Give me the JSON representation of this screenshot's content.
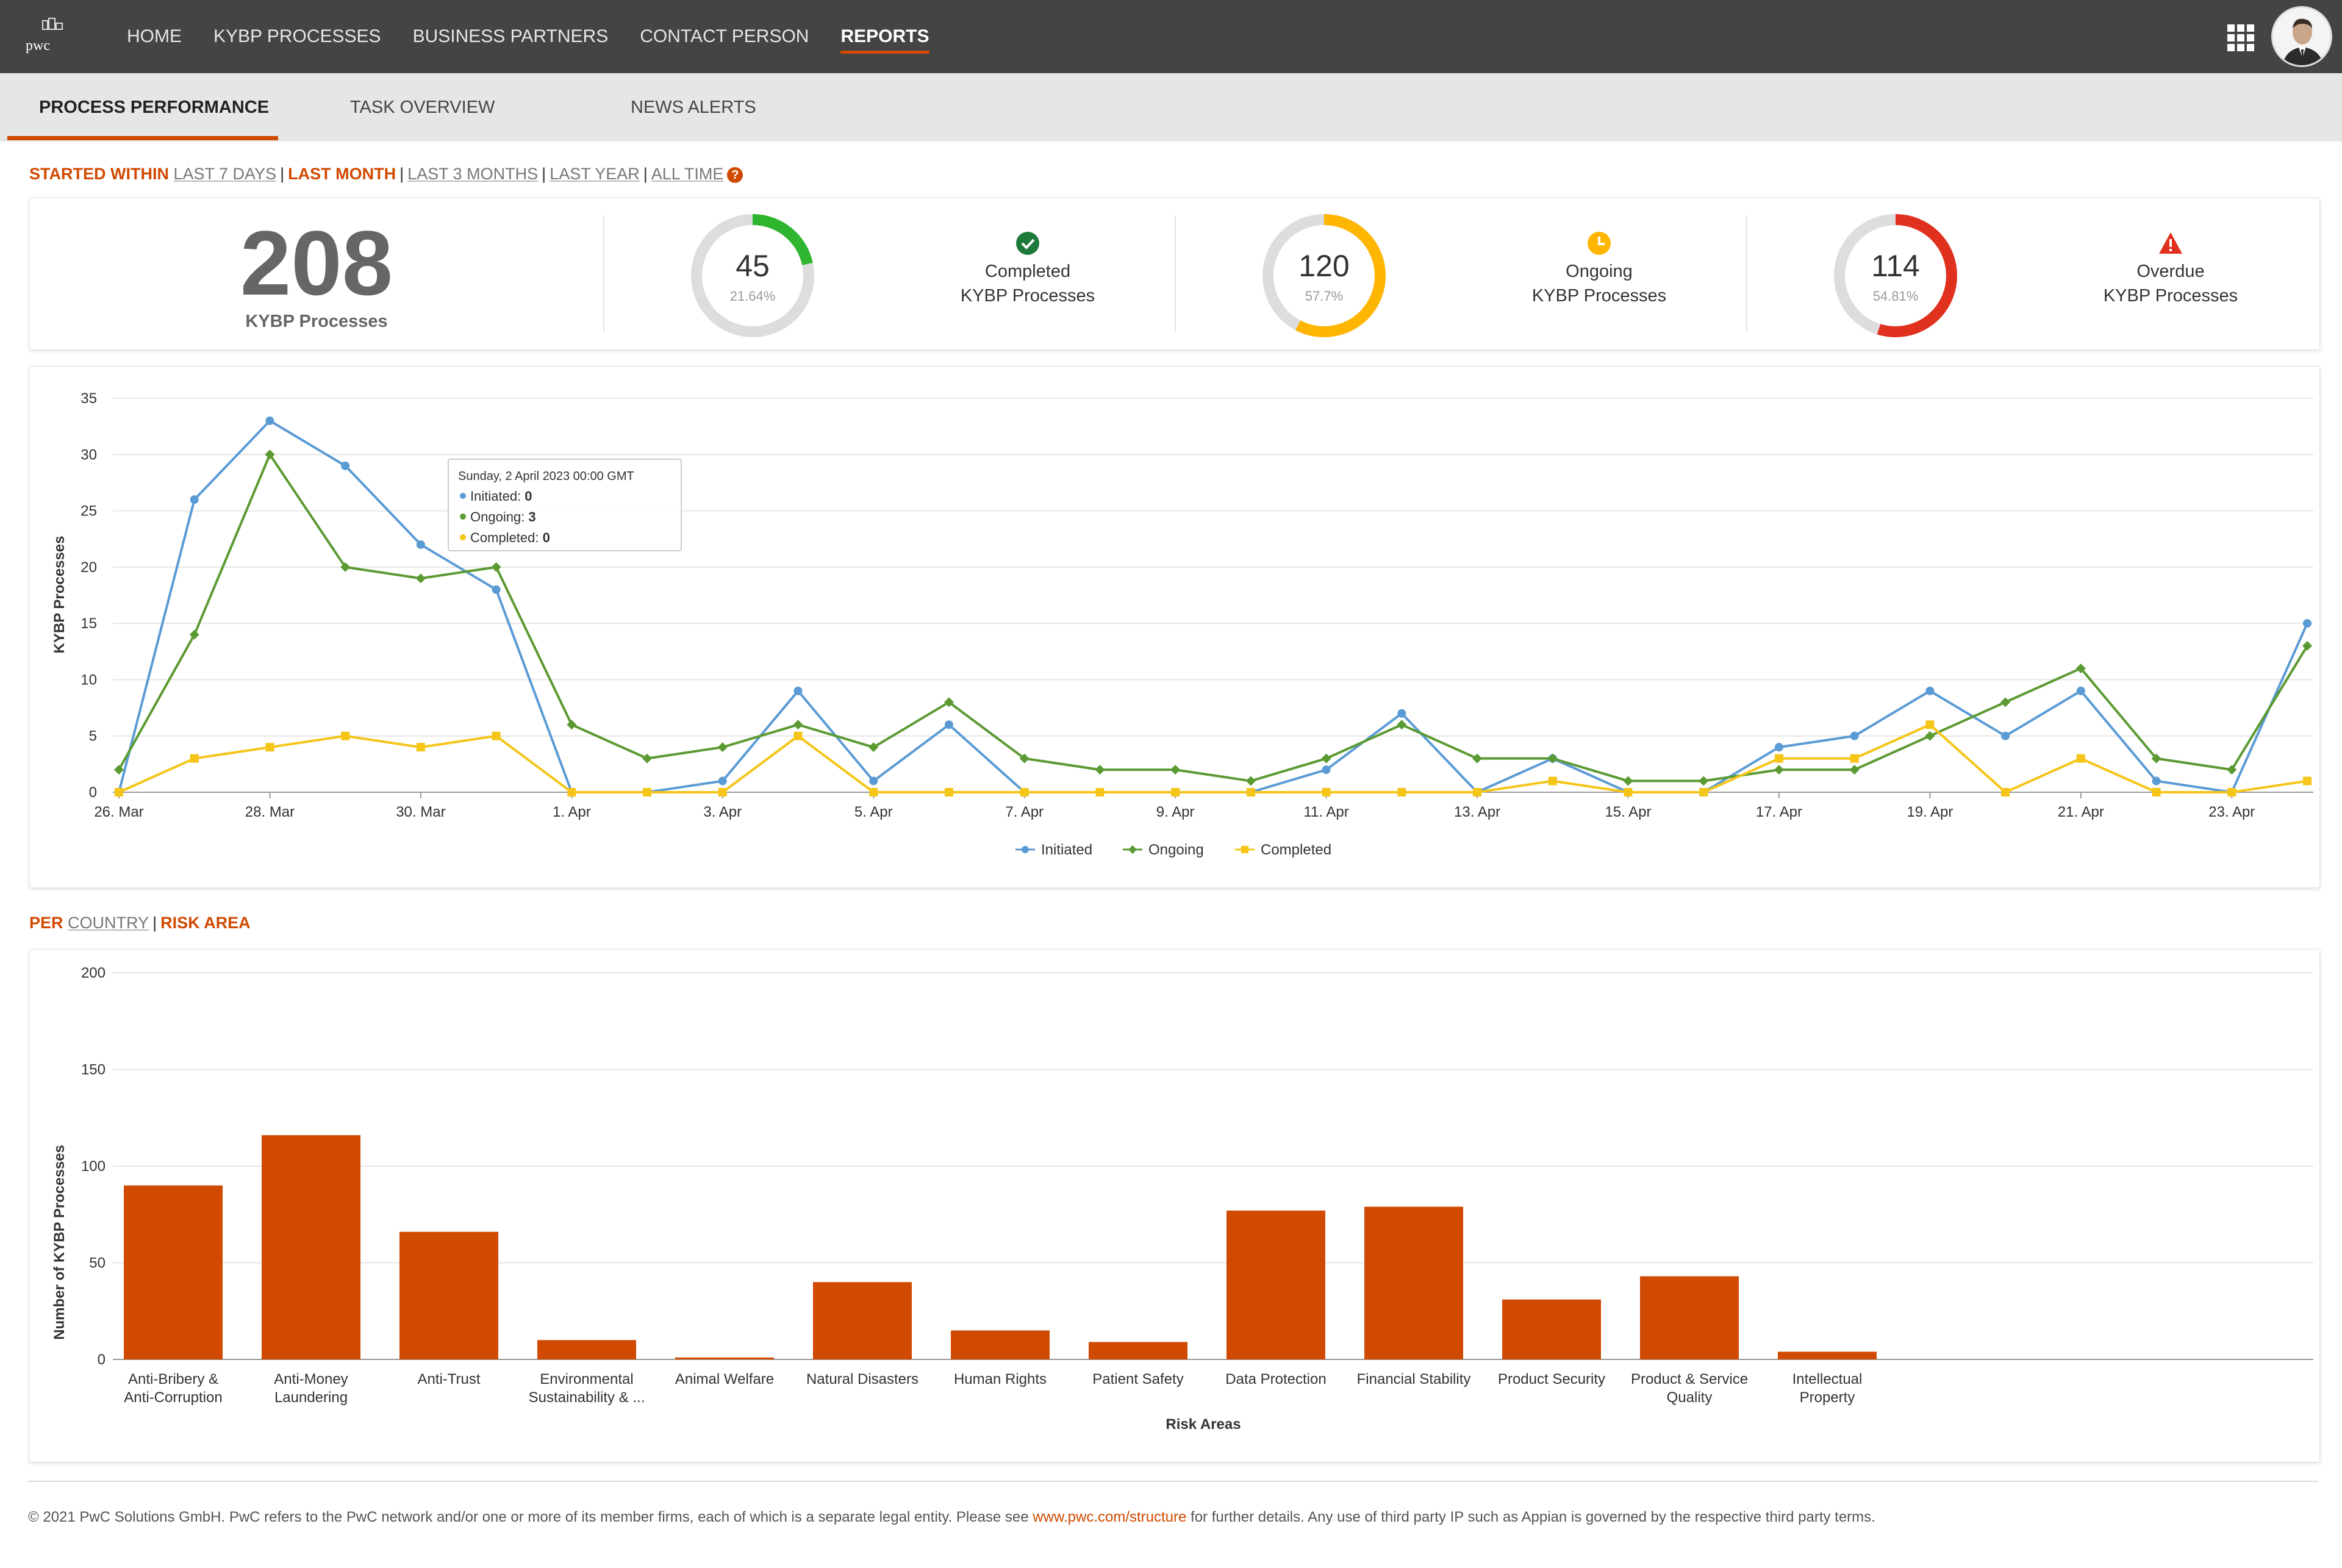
{
  "nav": {
    "logo_text": "pwc",
    "items": [
      {
        "label": "HOME"
      },
      {
        "label": "KYBP PROCESSES"
      },
      {
        "label": "BUSINESS PARTNERS"
      },
      {
        "label": "CONTACT PERSON"
      },
      {
        "label": "REPORTS",
        "active": true
      }
    ]
  },
  "tabs": [
    {
      "label": "PROCESS PERFORMANCE",
      "active": true
    },
    {
      "label": "TASK OVERVIEW"
    },
    {
      "label": "NEWS ALERTS"
    }
  ],
  "time_filter": {
    "label": "STARTED WITHIN",
    "options": [
      "LAST 7 DAYS",
      "LAST MONTH",
      "LAST 3 MONTHS",
      "LAST YEAR",
      "ALL TIME"
    ],
    "selected": "LAST MONTH"
  },
  "summary": {
    "total": "208",
    "total_label": "KYBP Processes",
    "stats": [
      {
        "value": "45",
        "percent": "21.64%",
        "fraction": 0.2164,
        "label1": "Completed",
        "label2": "KYBP Processes",
        "color": "#2fb52f",
        "icon": "check-circle-icon"
      },
      {
        "value": "120",
        "percent": "57.7%",
        "fraction": 0.577,
        "label1": "Ongoing",
        "label2": "KYBP Processes",
        "color": "#ffb600",
        "icon": "clock-icon"
      },
      {
        "value": "114",
        "percent": "54.81%",
        "fraction": 0.5481,
        "label1": "Overdue",
        "label2": "KYBP Processes",
        "color": "#e0301e",
        "icon": "warning-icon"
      }
    ]
  },
  "group_filter": {
    "label": "PER",
    "options": [
      "COUNTRY",
      "RISK AREA"
    ],
    "selected": "RISK AREA"
  },
  "chart_data": [
    {
      "type": "line",
      "ylabel": "KYBP Processes",
      "ylim": [
        0,
        35
      ],
      "yticks": [
        "0",
        "5",
        "10",
        "15",
        "20",
        "25",
        "30",
        "35"
      ],
      "x": [
        "26. Mar",
        "27. Mar",
        "28. Mar",
        "29. Mar",
        "30. Mar",
        "31. Mar",
        "1. Apr",
        "2. Apr",
        "3. Apr",
        "4. Apr",
        "5. Apr",
        "6. Apr",
        "7. Apr",
        "8. Apr",
        "9. Apr",
        "10. Apr",
        "11. Apr",
        "12. Apr",
        "13. Apr",
        "14. Apr",
        "15. Apr",
        "16. Apr",
        "17. Apr",
        "18. Apr",
        "19. Apr",
        "20. Apr",
        "21. Apr",
        "22. Apr",
        "23. Apr",
        "24. Apr"
      ],
      "xtick_labels": [
        "26. Mar",
        "28. Mar",
        "30. Mar",
        "1. Apr",
        "3. Apr",
        "5. Apr",
        "7. Apr",
        "9. Apr",
        "11. Apr",
        "13. Apr",
        "15. Apr",
        "17. Apr",
        "19. Apr",
        "21. Apr",
        "23. Apr"
      ],
      "series": [
        {
          "name": "Initiated",
          "color": "#5b9bd5",
          "marker": "circle",
          "values": [
            0,
            26,
            33,
            29,
            22,
            18,
            0,
            0,
            1,
            9,
            1,
            6,
            0,
            0,
            0,
            0,
            2,
            7,
            0,
            3,
            0,
            0,
            4,
            5,
            9,
            5,
            9,
            1,
            0,
            15
          ]
        },
        {
          "name": "Ongoing",
          "color": "#5b9a32",
          "marker": "diamond",
          "values": [
            2,
            14,
            30,
            20,
            19,
            20,
            6,
            3,
            4,
            6,
            4,
            8,
            3,
            2,
            2,
            1,
            3,
            6,
            3,
            3,
            1,
            1,
            2,
            2,
            5,
            8,
            11,
            3,
            2,
            13
          ]
        },
        {
          "name": "Completed",
          "color": "#f5c518",
          "marker": "square",
          "values": [
            0,
            3,
            4,
            5,
            4,
            5,
            0,
            0,
            0,
            5,
            0,
            0,
            0,
            0,
            0,
            0,
            0,
            0,
            0,
            1,
            0,
            0,
            3,
            3,
            6,
            0,
            3,
            0,
            0,
            1
          ]
        }
      ],
      "tooltip": {
        "title": "Sunday, 2 April 2023 00:00 GMT",
        "rows": [
          {
            "name": "Initiated",
            "value": "0"
          },
          {
            "name": "Ongoing",
            "value": "3"
          },
          {
            "name": "Completed",
            "value": "0"
          }
        ]
      }
    },
    {
      "type": "bar",
      "xlabel": "Risk Areas",
      "ylabel": "Number of KYBP Processes",
      "ylim": [
        0,
        200
      ],
      "yticks": [
        "0",
        "50",
        "100",
        "150",
        "200"
      ],
      "color": "#d04a02",
      "categories": [
        [
          "Anti-Bribery &",
          "Anti-Corruption"
        ],
        [
          "Anti-Money",
          "Laundering"
        ],
        [
          "Anti-Trust"
        ],
        [
          "Environmental",
          "Sustainability & ..."
        ],
        [
          "Animal Welfare"
        ],
        [
          "Natural Disasters"
        ],
        [
          "Human Rights"
        ],
        [
          "Patient Safety"
        ],
        [
          "Data Protection"
        ],
        [
          "Financial Stability"
        ],
        [
          "Product Security"
        ],
        [
          "Product & Service",
          "Quality"
        ],
        [
          "Intellectual",
          "Property"
        ]
      ],
      "values": [
        90,
        116,
        66,
        10,
        1,
        40,
        15,
        9,
        77,
        79,
        31,
        43,
        4
      ]
    }
  ],
  "footer": {
    "text_before": "© 2021 PwC Solutions GmbH. PwC refers to the PwC network and/or one or more of its member firms, each of which is a separate legal entity. Please see ",
    "link": "www.pwc.com/structure",
    "text_after": " for further details. Any use of third party IP such as Appian is governed by the respective third party terms."
  }
}
